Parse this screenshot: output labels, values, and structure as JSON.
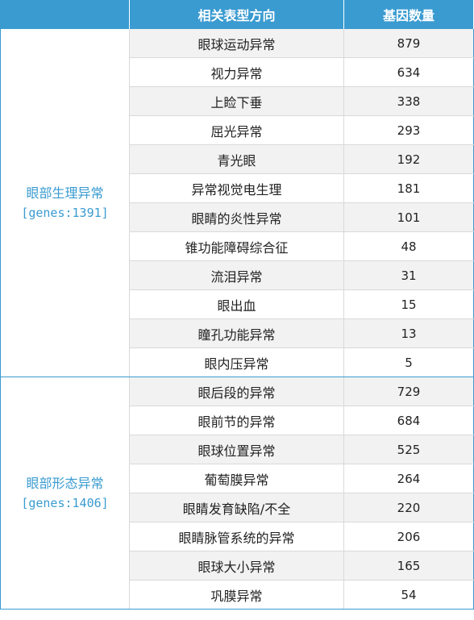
{
  "header": {
    "col_group": "",
    "col_phenotype": "相关表型方向",
    "col_gene_count": "基因数量"
  },
  "groups": [
    {
      "name": "眼部生理异常",
      "genes_label": "[genes:1391]",
      "rows": [
        {
          "phenotype": "眼球运动异常",
          "count": "879"
        },
        {
          "phenotype": "视力异常",
          "count": "634"
        },
        {
          "phenotype": "上睑下垂",
          "count": "338"
        },
        {
          "phenotype": "屈光异常",
          "count": "293"
        },
        {
          "phenotype": "青光眼",
          "count": "192"
        },
        {
          "phenotype": "异常视觉电生理",
          "count": "181"
        },
        {
          "phenotype": "眼睛的炎性异常",
          "count": "101"
        },
        {
          "phenotype": "锥功能障碍综合征",
          "count": "48"
        },
        {
          "phenotype": "流泪异常",
          "count": "31"
        },
        {
          "phenotype": "眼出血",
          "count": "15"
        },
        {
          "phenotype": "瞳孔功能异常",
          "count": "13"
        },
        {
          "phenotype": "眼内压异常",
          "count": "5"
        }
      ]
    },
    {
      "name": "眼部形态异常",
      "genes_label": "[genes:1406]",
      "rows": [
        {
          "phenotype": "眼后段的异常",
          "count": "729"
        },
        {
          "phenotype": "眼前节的异常",
          "count": "684"
        },
        {
          "phenotype": "眼球位置异常",
          "count": "525"
        },
        {
          "phenotype": "葡萄膜异常",
          "count": "264"
        },
        {
          "phenotype": "眼睛发育缺陷/不全",
          "count": "220"
        },
        {
          "phenotype": "眼睛脉管系统的异常",
          "count": "206"
        },
        {
          "phenotype": "眼球大小异常",
          "count": "165"
        },
        {
          "phenotype": "巩膜异常",
          "count": "54"
        }
      ]
    }
  ],
  "colors": {
    "header_bg": "#3a9bd1",
    "group_text": "#3a9bd1",
    "stripe": "#f2f2f2",
    "grid": "#d9d9d9"
  }
}
